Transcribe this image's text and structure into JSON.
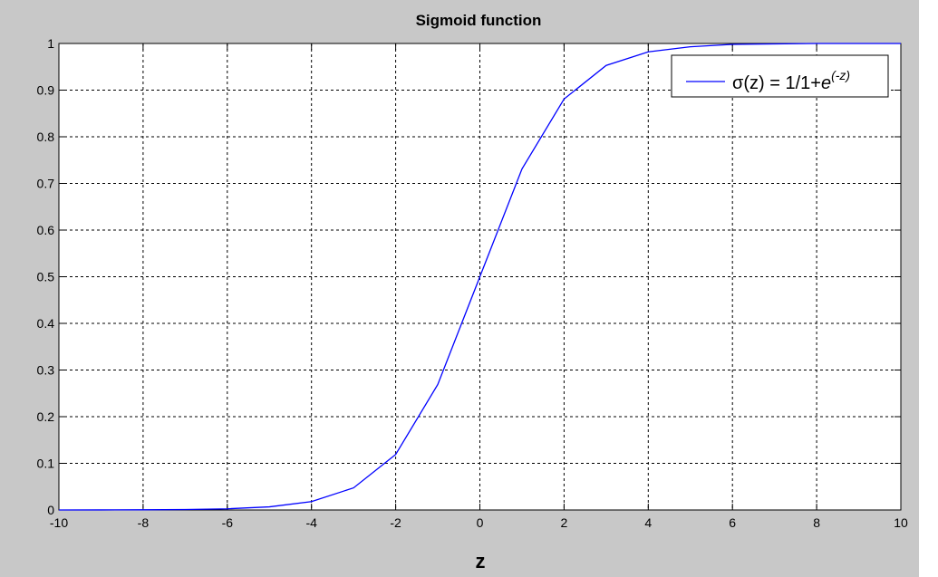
{
  "chart_data": {
    "type": "line",
    "title": "Sigmoid function",
    "xlabel": "z",
    "ylabel": "",
    "xlim": [
      -10,
      10
    ],
    "ylim": [
      0,
      1
    ],
    "grid": true,
    "legend_position": "top-right",
    "x_ticks": [
      -10,
      -8,
      -6,
      -4,
      -2,
      0,
      2,
      4,
      6,
      8,
      10
    ],
    "y_ticks": [
      0,
      0.1,
      0.2,
      0.3,
      0.4,
      0.5,
      0.6,
      0.7,
      0.8,
      0.9,
      1
    ],
    "legend": {
      "label_main": "σ(z) = 1/1+",
      "label_base": "e",
      "label_exponent": "(-z)"
    },
    "series": [
      {
        "name": "σ(z) = 1/1+e^(-z)",
        "color": "#0000ff",
        "x": [
          -10,
          -9,
          -8,
          -7,
          -6,
          -5,
          -4,
          -3,
          -2,
          -1,
          0,
          1,
          2,
          3,
          4,
          5,
          6,
          7,
          8,
          9,
          10
        ],
        "y": [
          4.54e-05,
          0.000123,
          0.000335,
          0.000911,
          0.00247,
          0.00669,
          0.018,
          0.0474,
          0.119,
          0.269,
          0.5,
          0.731,
          0.881,
          0.953,
          0.982,
          0.993,
          0.998,
          0.999,
          1.0,
          1.0,
          1.0
        ]
      }
    ]
  }
}
